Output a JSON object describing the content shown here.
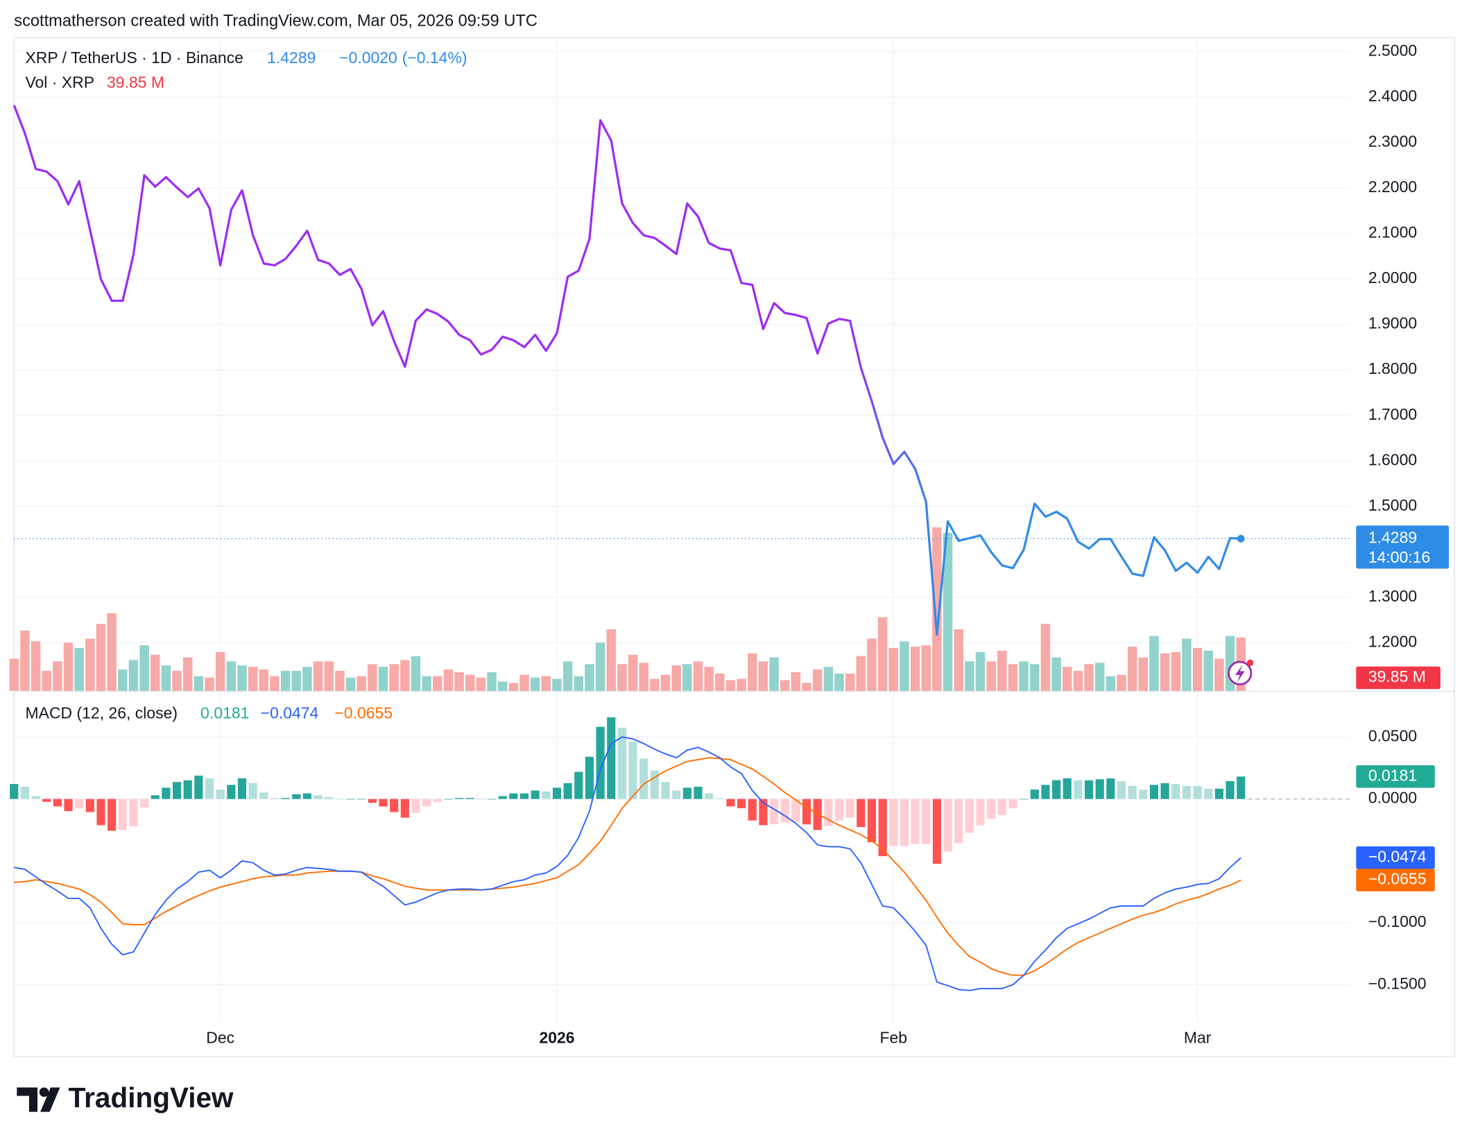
{
  "header": "scottmatherson created with TradingView.com, Mar 05, 2026 09:59 UTC",
  "brand": "TradingView",
  "chart_data": {
    "type": "line",
    "title": "XRP / TetherUS · 1D · Binance",
    "change": {
      "value": -0.002,
      "label": "−0.0020"
    },
    "change_percent": {
      "value": -0.14,
      "label": "(−0.14%)"
    },
    "countdown": "14:00:16",
    "categories": [
      null,
      null,
      null,
      null,
      null,
      null,
      null,
      null,
      null,
      null,
      null,
      null,
      null,
      null,
      null,
      null,
      null,
      null,
      null,
      "Dec",
      null,
      null,
      null,
      null,
      null,
      null,
      null,
      null,
      null,
      null,
      null,
      null,
      null,
      null,
      null,
      null,
      null,
      null,
      null,
      null,
      null,
      null,
      null,
      null,
      null,
      null,
      null,
      null,
      null,
      null,
      "2026",
      null,
      null,
      null,
      null,
      null,
      null,
      null,
      null,
      null,
      null,
      null,
      null,
      null,
      null,
      null,
      null,
      null,
      null,
      null,
      null,
      null,
      null,
      null,
      null,
      null,
      null,
      null,
      null,
      null,
      null,
      "Feb",
      null,
      null,
      null,
      null,
      null,
      null,
      null,
      null,
      null,
      null,
      null,
      null,
      null,
      null,
      null,
      null,
      null,
      null,
      null,
      null,
      null,
      null,
      null,
      null,
      null,
      null,
      null,
      "Mar",
      null,
      null,
      null,
      null
    ],
    "series": [
      {
        "colors": [
          "#9c2cf3",
          "#2f8ce6"
        ],
        "values": [
          2.382,
          2.32,
          2.242,
          2.236,
          2.215,
          2.164,
          2.215,
          2.108,
          1.999,
          1.952,
          1.952,
          2.053,
          2.228,
          2.203,
          2.224,
          2.201,
          2.18,
          2.199,
          2.156,
          2.03,
          2.152,
          2.195,
          2.096,
          2.034,
          2.03,
          2.044,
          2.073,
          2.106,
          2.042,
          2.034,
          2.009,
          2.022,
          1.978,
          1.898,
          1.929,
          1.863,
          1.807,
          1.908,
          1.933,
          1.923,
          1.906,
          1.877,
          1.865,
          1.834,
          1.844,
          1.873,
          1.865,
          1.85,
          1.877,
          1.842,
          1.881,
          2.005,
          2.018,
          2.088,
          2.349,
          2.304,
          2.166,
          2.123,
          2.096,
          2.09,
          2.073,
          2.055,
          2.166,
          2.137,
          2.079,
          2.067,
          2.063,
          1.991,
          1.987,
          1.89,
          1.947,
          1.925,
          1.921,
          1.914,
          1.836,
          1.902,
          1.912,
          1.908,
          1.805,
          1.731,
          1.651,
          1.593,
          1.62,
          1.582,
          1.51,
          1.218,
          1.467,
          1.424,
          1.43,
          1.436,
          1.399,
          1.37,
          1.364,
          1.405,
          1.506,
          1.477,
          1.488,
          1.473,
          1.422,
          1.407,
          1.428,
          1.428,
          1.389,
          1.352,
          1.347,
          1.432,
          1.403,
          1.358,
          1.376,
          1.354,
          1.389,
          1.362,
          1.43,
          1.4289
        ]
      }
    ],
    "volume": {
      "name": "Vol · XRP",
      "last_label": "39.85 M",
      "colors": {
        "up": "#92d2cc",
        "down": "#f7a9a7"
      },
      "values": [
        24,
        45,
        37,
        15,
        22,
        36,
        32,
        39,
        50,
        58,
        16,
        23,
        34,
        27,
        19,
        15,
        25,
        11,
        10,
        29,
        22,
        19,
        18,
        16,
        11,
        15,
        15,
        18,
        22,
        22,
        15,
        10,
        11,
        20,
        18,
        20,
        23,
        26,
        11,
        11,
        16,
        14,
        12,
        10,
        14,
        7,
        6,
        12,
        10,
        11,
        9,
        22,
        11,
        20,
        36,
        46,
        20,
        27,
        21,
        9,
        12,
        19,
        20,
        22,
        18,
        13,
        8,
        9,
        28,
        22,
        25,
        8,
        14,
        6,
        16,
        18,
        13,
        13,
        26,
        39,
        55,
        32,
        37,
        33,
        34,
        122,
        118,
        46,
        22,
        29,
        22,
        30,
        20,
        22,
        20,
        50,
        25,
        18,
        15,
        20,
        21,
        11,
        12,
        33,
        25,
        41,
        28,
        29,
        39,
        32,
        30,
        24,
        41,
        39.85
      ]
    },
    "ylim": [
      1.094,
      2.531
    ],
    "yticks": [
      {
        "value": 1.2,
        "label": "1.2000"
      },
      {
        "value": 1.3,
        "label": "1.3000"
      },
      {
        "value": 1.5,
        "label": "1.5000"
      },
      {
        "value": 1.6,
        "label": "1.6000"
      },
      {
        "value": 1.7,
        "label": "1.7000"
      },
      {
        "value": 1.8,
        "label": "1.8000"
      },
      {
        "value": 1.9,
        "label": "1.9000"
      },
      {
        "value": 2.0,
        "label": "2.0000"
      },
      {
        "value": 2.1,
        "label": "2.1000"
      },
      {
        "value": 2.2,
        "label": "2.2000"
      },
      {
        "value": 2.3,
        "label": "2.3000"
      },
      {
        "value": 2.4,
        "label": "2.4000"
      },
      {
        "value": 2.5,
        "label": "2.5000"
      }
    ],
    "grid": true,
    "macd": {
      "type": "macd",
      "title": "MACD (12, 26, close)",
      "ylim": [
        -0.18,
        0.085
      ],
      "yticks": [
        {
          "value": -0.15,
          "label": "−0.1500"
        },
        {
          "value": -0.1,
          "label": "−0.1000"
        },
        {
          "value": 0,
          "label": "0.0000"
        },
        {
          "value": 0.05,
          "label": "0.0500"
        }
      ],
      "histogram": {
        "last_label": "0.0181",
        "colors": {
          "rise_up": "#26a69a",
          "fall_up": "#b2dfdb",
          "fall_down": "#ff5252",
          "rise_down": "#ffcdd2"
        },
        "values": [
          0.0121,
          0.0099,
          0.0023,
          -0.0023,
          -0.006,
          -0.0098,
          -0.0076,
          -0.0106,
          -0.0212,
          -0.0257,
          -0.025,
          -0.022,
          -0.0068,
          0.003,
          0.0091,
          0.0137,
          0.0151,
          0.0189,
          0.0166,
          0.0076,
          0.0114,
          0.0167,
          0.0129,
          0.0053,
          0.0007,
          0.0008,
          0.0038,
          0.0045,
          0.003,
          0.0015,
          0,
          0,
          0,
          -0.0031,
          -0.0061,
          -0.0106,
          -0.0151,
          -0.0113,
          -0.006,
          -0.0023,
          0,
          0.0008,
          0.0008,
          0,
          0,
          0.0023,
          0.0045,
          0.0045,
          0.0068,
          0.0061,
          0.0091,
          0.0128,
          0.0219,
          0.0341,
          0.0583,
          0.0659,
          0.0576,
          0.0462,
          0.0326,
          0.0228,
          0.0137,
          0.0068,
          0.0091,
          0.0099,
          0.0046,
          0.0007,
          -0.006,
          -0.0075,
          -0.0174,
          -0.0212,
          -0.0204,
          -0.0189,
          -0.0189,
          -0.0205,
          -0.025,
          -0.0219,
          -0.0174,
          -0.0152,
          -0.0227,
          -0.0349,
          -0.0462,
          -0.0379,
          -0.0379,
          -0.0364,
          -0.0364,
          -0.0523,
          -0.0425,
          -0.0357,
          -0.0273,
          -0.0213,
          -0.016,
          -0.0129,
          -0.0076,
          0,
          0.0076,
          0.0114,
          0.0152,
          0.0167,
          0.0151,
          0.0151,
          0.0159,
          0.0166,
          0.0144,
          0.0106,
          0.0075,
          0.0114,
          0.0128,
          0.0121,
          0.0106,
          0.0105,
          0.0083,
          0.0083,
          0.0144,
          0.0181
        ]
      },
      "macd": {
        "color": "#2962ff",
        "last_label": "−0.0474",
        "values": [
          -0.0553,
          -0.0568,
          -0.0629,
          -0.069,
          -0.0742,
          -0.0803,
          -0.0803,
          -0.0879,
          -0.1045,
          -0.1174,
          -0.1258,
          -0.1235,
          -0.1083,
          -0.0932,
          -0.0818,
          -0.0727,
          -0.0667,
          -0.0591,
          -0.0576,
          -0.0636,
          -0.0576,
          -0.05,
          -0.0515,
          -0.0576,
          -0.0614,
          -0.0606,
          -0.0576,
          -0.0553,
          -0.0561,
          -0.0568,
          -0.0583,
          -0.0583,
          -0.0591,
          -0.0652,
          -0.0705,
          -0.078,
          -0.0856,
          -0.0833,
          -0.0795,
          -0.0758,
          -0.0735,
          -0.0727,
          -0.0727,
          -0.0735,
          -0.0727,
          -0.0697,
          -0.0667,
          -0.0652,
          -0.0614,
          -0.0598,
          -0.0545,
          -0.0455,
          -0.0311,
          -0.0098,
          0.0242,
          0.0447,
          0.05,
          0.0485,
          0.0447,
          0.0402,
          0.0364,
          0.0333,
          0.0394,
          0.0417,
          0.0379,
          0.0333,
          0.0258,
          0.0205,
          0.0068,
          -0.003,
          -0.0083,
          -0.0136,
          -0.0197,
          -0.0273,
          -0.0371,
          -0.0386,
          -0.0386,
          -0.0402,
          -0.0515,
          -0.069,
          -0.0864,
          -0.0879,
          -0.097,
          -0.1069,
          -0.1182,
          -0.1478,
          -0.1508,
          -0.1539,
          -0.1546,
          -0.1531,
          -0.1531,
          -0.1531,
          -0.15,
          -0.1424,
          -0.1311,
          -0.122,
          -0.1121,
          -0.1045,
          -0.1008,
          -0.097,
          -0.0924,
          -0.0879,
          -0.0864,
          -0.0864,
          -0.0864,
          -0.0803,
          -0.0758,
          -0.0727,
          -0.0712,
          -0.069,
          -0.0682,
          -0.0644,
          -0.0553,
          -0.0474
        ]
      },
      "signal": {
        "color": "#ff6d00",
        "last_label": "−0.0655",
        "values": [
          -0.0674,
          -0.0667,
          -0.0652,
          -0.0667,
          -0.0682,
          -0.0705,
          -0.0727,
          -0.0773,
          -0.0833,
          -0.0917,
          -0.1008,
          -0.1015,
          -0.1015,
          -0.0962,
          -0.0909,
          -0.0864,
          -0.0818,
          -0.078,
          -0.0742,
          -0.0712,
          -0.069,
          -0.0667,
          -0.0644,
          -0.0629,
          -0.0621,
          -0.0614,
          -0.0614,
          -0.0598,
          -0.0591,
          -0.0583,
          -0.0583,
          -0.0583,
          -0.0591,
          -0.0621,
          -0.0644,
          -0.0674,
          -0.0705,
          -0.072,
          -0.0735,
          -0.0735,
          -0.0735,
          -0.0735,
          -0.0735,
          -0.0735,
          -0.0727,
          -0.072,
          -0.0712,
          -0.0697,
          -0.0682,
          -0.0659,
          -0.0636,
          -0.0583,
          -0.053,
          -0.0439,
          -0.0341,
          -0.0212,
          -0.0076,
          0.0023,
          0.0121,
          0.0174,
          0.0227,
          0.0265,
          0.0303,
          0.0318,
          0.0333,
          0.0326,
          0.0318,
          0.028,
          0.0242,
          0.0182,
          0.0121,
          0.0053,
          -0.0008,
          -0.0068,
          -0.0121,
          -0.0167,
          -0.0212,
          -0.025,
          -0.0288,
          -0.0341,
          -0.0402,
          -0.05,
          -0.0591,
          -0.0705,
          -0.0818,
          -0.0955,
          -0.1083,
          -0.1182,
          -0.1273,
          -0.1318,
          -0.1371,
          -0.1402,
          -0.1424,
          -0.1424,
          -0.1387,
          -0.1334,
          -0.1273,
          -0.1212,
          -0.1159,
          -0.1121,
          -0.1083,
          -0.1045,
          -0.1008,
          -0.097,
          -0.0939,
          -0.0917,
          -0.0886,
          -0.0848,
          -0.0818,
          -0.0795,
          -0.0765,
          -0.0727,
          -0.0697,
          -0.0655
        ]
      }
    }
  }
}
